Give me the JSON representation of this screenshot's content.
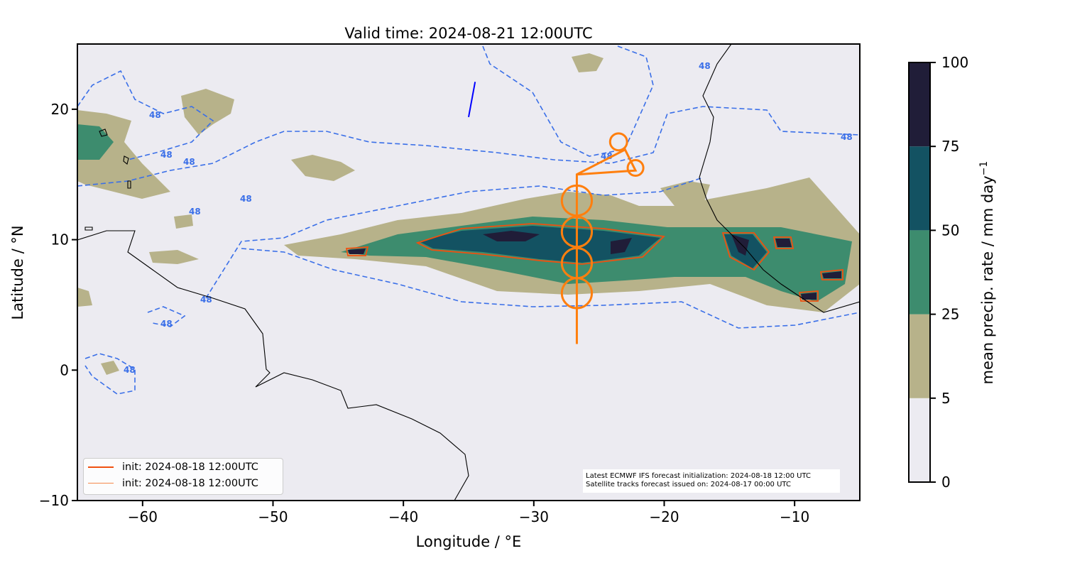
{
  "chart_data": {
    "type": "map",
    "title": "Valid time: 2024-08-21 12:00UTC",
    "xlabel": "Longitude / °E",
    "ylabel": "Latitude / °N",
    "xlim": [
      -65,
      -5
    ],
    "ylim": [
      -10,
      25
    ],
    "xticks": [
      -60,
      -50,
      -40,
      -30,
      -20,
      -10
    ],
    "xtick_labels": [
      "−60",
      "−50",
      "−40",
      "−30",
      "−20",
      "−10"
    ],
    "yticks": [
      20,
      10,
      0,
      -10
    ],
    "ytick_labels": [
      "20",
      "10",
      "0",
      "−10"
    ],
    "colorbar": {
      "label": "mean precip. rate / mm day",
      "label_sup": "−1",
      "levels": [
        0,
        5,
        25,
        50,
        75,
        100
      ],
      "level_labels": [
        "0",
        "5",
        "25",
        "50",
        "75",
        "100"
      ],
      "colors": [
        "#ecebf1",
        "#b7b28a",
        "#3d8c6e",
        "#135262",
        "#201d38"
      ]
    },
    "contour_label": "48",
    "contour_color": "#3a6fe8",
    "legend": [
      {
        "label": "init: 2024-08-18 12:00UTC",
        "color": "#f0500f"
      },
      {
        "label": "init: 2024-08-18 12:00UTC",
        "color": "#f5884a"
      }
    ],
    "track": {
      "color": "#ff7f0e",
      "path": [
        [
          -26.7,
          2
        ],
        [
          -26.7,
          15
        ],
        [
          -23.0,
          16.9
        ],
        [
          -22.2,
          15.3
        ],
        [
          -26.7,
          15
        ]
      ],
      "circles": [
        {
          "lon": -26.7,
          "lat": 13.0,
          "r": 1.15
        },
        {
          "lon": -26.7,
          "lat": 10.6,
          "r": 1.15
        },
        {
          "lon": -26.7,
          "lat": 8.2,
          "r": 1.15
        },
        {
          "lon": -26.7,
          "lat": 5.9,
          "r": 1.15
        },
        {
          "lon": -23.5,
          "lat": 17.5,
          "r": 0.65
        },
        {
          "lon": -22.2,
          "lat": 15.5,
          "r": 0.6
        }
      ]
    },
    "satellite_track": {
      "color": "#0000ff",
      "path": [
        [
          -35.0,
          19.4
        ],
        [
          -34.5,
          22.1
        ]
      ]
    },
    "annotation": [
      "Latest ECMWF IFS forecast initialization: 2024-08-18 12:00 UTC",
      "Satellite tracks forecast issued on: 2024-08-17 00:00 UTC"
    ]
  }
}
